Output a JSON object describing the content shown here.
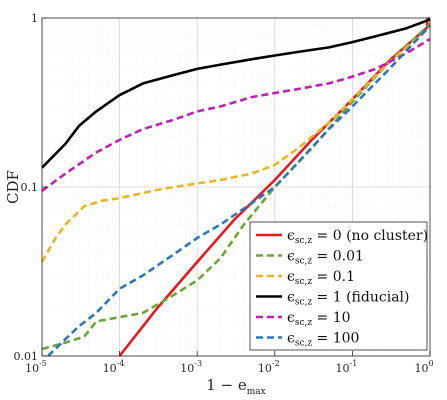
{
  "chart_data": {
    "type": "line",
    "xlabel": "1 − e",
    "xlabel_sub": "max",
    "ylabel": "CDF",
    "xscale": "log",
    "yscale": "log",
    "xlim": [
      1e-05,
      1
    ],
    "ylim": [
      0.01,
      1
    ],
    "grid": true,
    "legend_position": "bottom-right",
    "x_ticks": [
      {
        "value": 1e-05,
        "base": "10",
        "exp": "-5"
      },
      {
        "value": 0.0001,
        "base": "10",
        "exp": "-4"
      },
      {
        "value": 0.001,
        "base": "10",
        "exp": "-3"
      },
      {
        "value": 0.01,
        "base": "10",
        "exp": "-2"
      },
      {
        "value": 0.1,
        "base": "10",
        "exp": "-1"
      },
      {
        "value": 1,
        "base": "10",
        "exp": "0"
      }
    ],
    "y_ticks": [
      {
        "value": 0.01,
        "label": "0.01"
      },
      {
        "value": 0.1,
        "label": "0.1"
      },
      {
        "value": 1,
        "label": "1"
      }
    ],
    "series": [
      {
        "name": "ϵ",
        "name_sub": "sc,z",
        "name_rest": " = 0 (no cluster)",
        "color": "#e8191d",
        "dash": "solid",
        "x": [
          0.0001,
          0.0003,
          0.001,
          0.003,
          0.01,
          0.03,
          0.1,
          0.3,
          0.85,
          0.92,
          0.92,
          1.0
        ],
        "y": [
          0.01,
          0.019,
          0.036,
          0.064,
          0.11,
          0.19,
          0.33,
          0.56,
          0.85,
          0.88,
          0.98,
          1.0
        ]
      },
      {
        "name": "ϵ",
        "name_sub": "sc,z",
        "name_rest": " = 0.01",
        "color": "#6aa536",
        "dash": "dashed",
        "x": [
          1e-05,
          2e-05,
          3.5e-05,
          5e-05,
          0.0001,
          0.0002,
          0.0005,
          0.001,
          0.002,
          0.004,
          0.01,
          0.03,
          0.1,
          0.3,
          1.0
        ],
        "y": [
          0.011,
          0.012,
          0.013,
          0.016,
          0.017,
          0.018,
          0.023,
          0.028,
          0.038,
          0.06,
          0.1,
          0.17,
          0.32,
          0.55,
          0.92
        ]
      },
      {
        "name": "ϵ",
        "name_sub": "sc,z",
        "name_rest": " = 0.1",
        "color": "#e8b424",
        "dash": "dashed",
        "x": [
          1e-05,
          1.5e-05,
          2e-05,
          3.5e-05,
          6e-05,
          0.0001,
          0.0003,
          0.001,
          0.002,
          0.005,
          0.01,
          0.02,
          0.05,
          0.1,
          0.3,
          1.0
        ],
        "y": [
          0.036,
          0.05,
          0.06,
          0.077,
          0.083,
          0.086,
          0.096,
          0.105,
          0.11,
          0.12,
          0.135,
          0.17,
          0.24,
          0.33,
          0.55,
          0.88
        ]
      },
      {
        "name": "ϵ",
        "name_sub": "sc,z",
        "name_rest": " = 1 (fiducial)",
        "color": "#000000",
        "dash": "solid",
        "x": [
          1e-05,
          2e-05,
          3e-05,
          5e-05,
          0.0001,
          0.0002,
          0.0005,
          0.001,
          0.002,
          0.005,
          0.01,
          0.02,
          0.05,
          0.1,
          0.2,
          0.5,
          1.0
        ],
        "y": [
          0.13,
          0.18,
          0.23,
          0.28,
          0.35,
          0.41,
          0.46,
          0.5,
          0.53,
          0.57,
          0.6,
          0.63,
          0.67,
          0.72,
          0.78,
          0.87,
          0.98
        ]
      },
      {
        "name": "ϵ",
        "name_sub": "sc,z",
        "name_rest": " = 10",
        "color": "#c01fb4",
        "dash": "dashed",
        "x": [
          1e-05,
          2e-05,
          5e-05,
          0.0001,
          0.0002,
          0.0005,
          0.001,
          0.002,
          0.005,
          0.01,
          0.02,
          0.05,
          0.1,
          0.2,
          0.5,
          1.0
        ],
        "y": [
          0.095,
          0.12,
          0.16,
          0.19,
          0.22,
          0.25,
          0.28,
          0.3,
          0.34,
          0.36,
          0.38,
          0.41,
          0.45,
          0.5,
          0.62,
          0.75
        ]
      },
      {
        "name": "ϵ",
        "name_sub": "sc,z",
        "name_rest": " = 100",
        "color": "#2978bd",
        "dash": "dashed",
        "x": [
          1.2e-05,
          1.8e-05,
          3e-05,
          5e-05,
          0.0001,
          0.0002,
          0.0005,
          0.001,
          0.002,
          0.005,
          0.01,
          0.02,
          0.05,
          0.1,
          0.3,
          1.0
        ],
        "y": [
          0.01,
          0.012,
          0.015,
          0.018,
          0.025,
          0.03,
          0.04,
          0.05,
          0.06,
          0.08,
          0.1,
          0.14,
          0.22,
          0.3,
          0.5,
          0.9
        ]
      }
    ]
  }
}
